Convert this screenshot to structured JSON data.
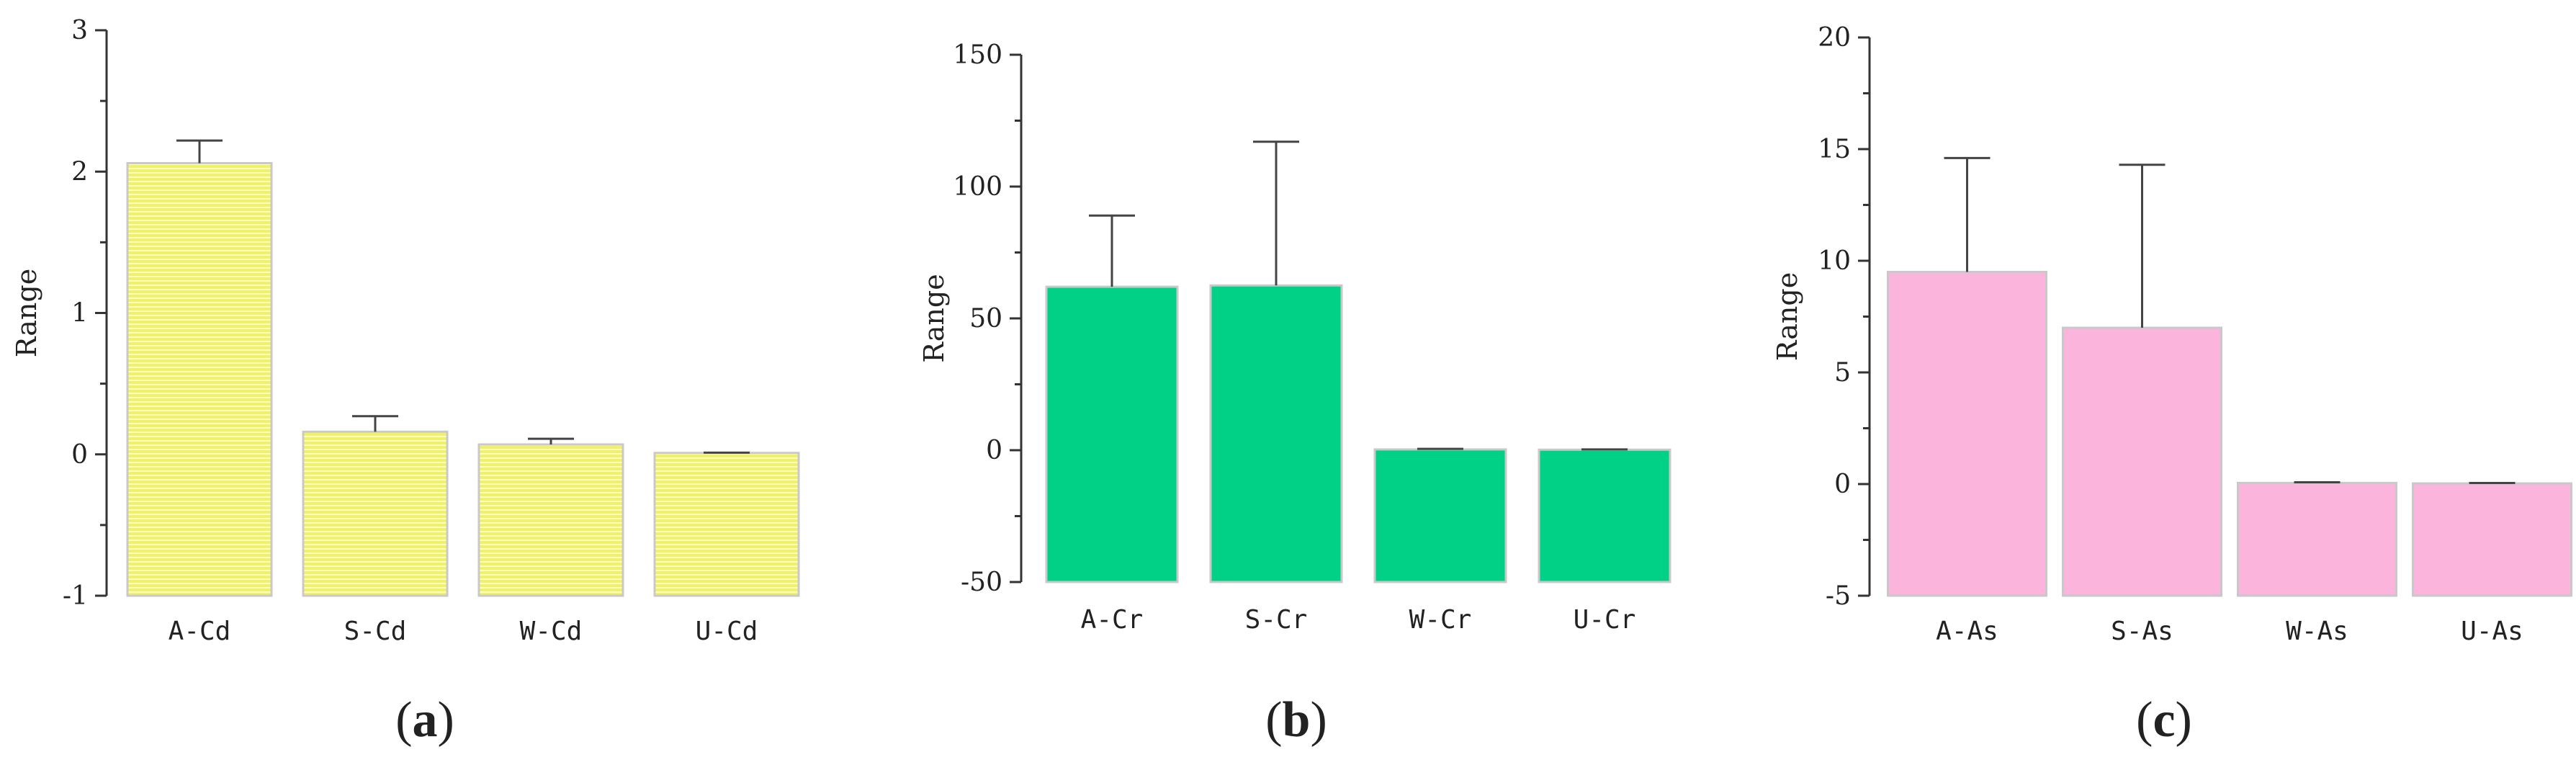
{
  "chart_data": [
    {
      "type": "bar",
      "panel": "a",
      "ylabel": "Range",
      "xlabel": "",
      "ylim": [
        -1,
        3
      ],
      "yticks": [
        -1,
        0,
        1,
        2,
        3
      ],
      "categories": [
        "A-Cd",
        "S-Cd",
        "W-Cd",
        "U-Cd"
      ],
      "values": [
        2.06,
        0.16,
        0.07,
        0.01
      ],
      "error_upper": [
        2.22,
        0.27,
        0.11,
        0.012
      ],
      "bar_color": "#f7f77a",
      "bar_pattern": "horizontal-hatch",
      "grid": false
    },
    {
      "type": "bar",
      "panel": "b",
      "ylabel": "Range",
      "xlabel": "",
      "ylim": [
        -50,
        150
      ],
      "yticks": [
        -50,
        0,
        50,
        100,
        150
      ],
      "categories": [
        "A-Cr",
        "S-Cr",
        "W-Cr",
        "U-Cr"
      ],
      "values": [
        62,
        62.5,
        0.3,
        0.2
      ],
      "error_upper": [
        89,
        117,
        0.5,
        0.3
      ],
      "bar_color": "#00d187",
      "bar_pattern": "solid",
      "grid": false
    },
    {
      "type": "bar",
      "panel": "c",
      "ylabel": "Range",
      "xlabel": "",
      "ylim": [
        -5,
        20
      ],
      "yticks": [
        -5,
        0,
        5,
        10,
        15,
        20
      ],
      "categories": [
        "A-As",
        "S-As",
        "W-As",
        "U-As"
      ],
      "values": [
        9.5,
        7.0,
        0.05,
        0.03
      ],
      "error_upper": [
        14.6,
        14.3,
        0.08,
        0.05
      ],
      "bar_color": "#fbb4dc",
      "bar_pattern": "solid",
      "grid": false
    }
  ],
  "panel_labels": [
    {
      "open": "(",
      "letter": "a",
      "close": ")"
    },
    {
      "open": "(",
      "letter": "b",
      "close": ")"
    },
    {
      "open": "(",
      "letter": "c",
      "close": ")"
    }
  ]
}
